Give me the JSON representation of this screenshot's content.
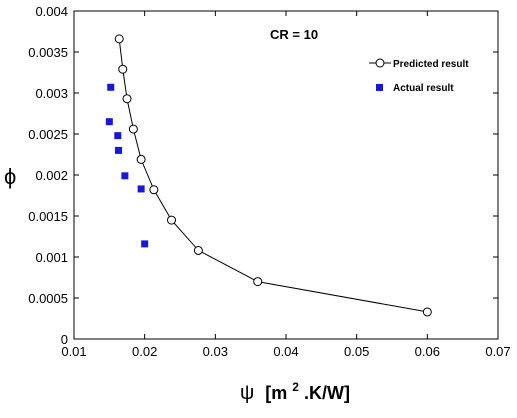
{
  "chart_data": {
    "type": "scatter",
    "annotation": "CR = 10",
    "xlabel": {
      "symbol": "ψ",
      "unit_prefix": "[m",
      "unit_sup": "2",
      "unit_suffix": ".K/W]"
    },
    "ylabel": "ϕ",
    "xlim": [
      0.01,
      0.07
    ],
    "ylim": [
      0,
      0.004
    ],
    "xticks": [
      0.01,
      0.02,
      0.03,
      0.04,
      0.05,
      0.06,
      0.07
    ],
    "yticks": [
      0,
      0.0005,
      0.001,
      0.0015,
      0.002,
      0.0025,
      0.003,
      0.0035,
      0.004
    ],
    "xtick_labels": [
      "0.01",
      "0.02",
      "0.03",
      "0.04",
      "0.05",
      "0.06",
      "0.07"
    ],
    "ytick_labels": [
      "0",
      "0.0005",
      "0.001",
      "0.0015",
      "0.002",
      "0.0025",
      "0.003",
      "0.0035",
      "0.004"
    ],
    "grid": false,
    "legend_position": "top-right",
    "series": [
      {
        "name": "Predicted result",
        "style": "line-open-circle",
        "color": "#000000",
        "x": [
          0.0164,
          0.0169,
          0.0175,
          0.0184,
          0.0195,
          0.0213,
          0.0238,
          0.0276,
          0.036,
          0.06
        ],
        "y": [
          0.00366,
          0.00329,
          0.00293,
          0.00256,
          0.00219,
          0.00182,
          0.00145,
          0.00108,
          0.0007,
          0.00033
        ]
      },
      {
        "name": "Actual result",
        "style": "filled-square",
        "color": "#1515e6",
        "x": [
          0.0152,
          0.015,
          0.0162,
          0.0163,
          0.0172,
          0.0195,
          0.02
        ],
        "y": [
          0.00307,
          0.00265,
          0.00248,
          0.0023,
          0.00199,
          0.00183,
          0.00116
        ]
      }
    ]
  }
}
